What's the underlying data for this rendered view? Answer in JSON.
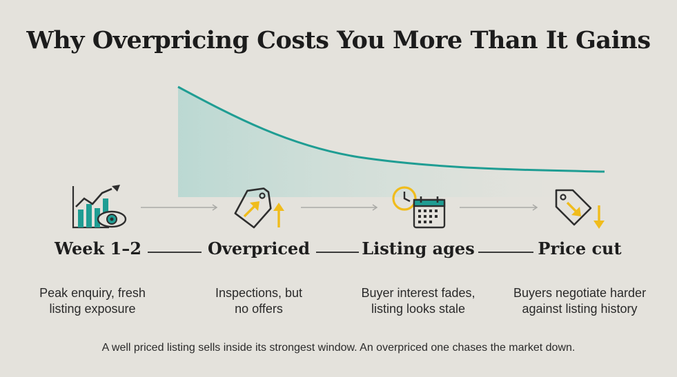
{
  "title": "Why Overpricing Costs You More Than It Gains",
  "steps": [
    {
      "label": "Week 1–2",
      "icon": "growth-chart-eye-icon",
      "desc_line1": "Peak enquiry, fresh",
      "desc_line2": "listing exposure"
    },
    {
      "label": "Overpriced",
      "icon": "price-tag-up-icon",
      "desc_line1": "Inspections, but",
      "desc_line2": "no offers"
    },
    {
      "label": "Listing ages",
      "icon": "clock-calendar-icon",
      "desc_line1": "Buyer interest fades,",
      "desc_line2": "listing looks stale"
    },
    {
      "label": "Price cut",
      "icon": "price-tag-down-icon",
      "desc_line1": "Buyers negotiate harder",
      "desc_line2": "against listing history"
    }
  ],
  "footer": "A well priced listing sells inside its strongest window. An overpriced one chases the market down.",
  "colors": {
    "teal": "#1f9d93",
    "gold": "#f0bc1c",
    "dark": "#2e2e2e",
    "background": "#e4e2dc"
  }
}
